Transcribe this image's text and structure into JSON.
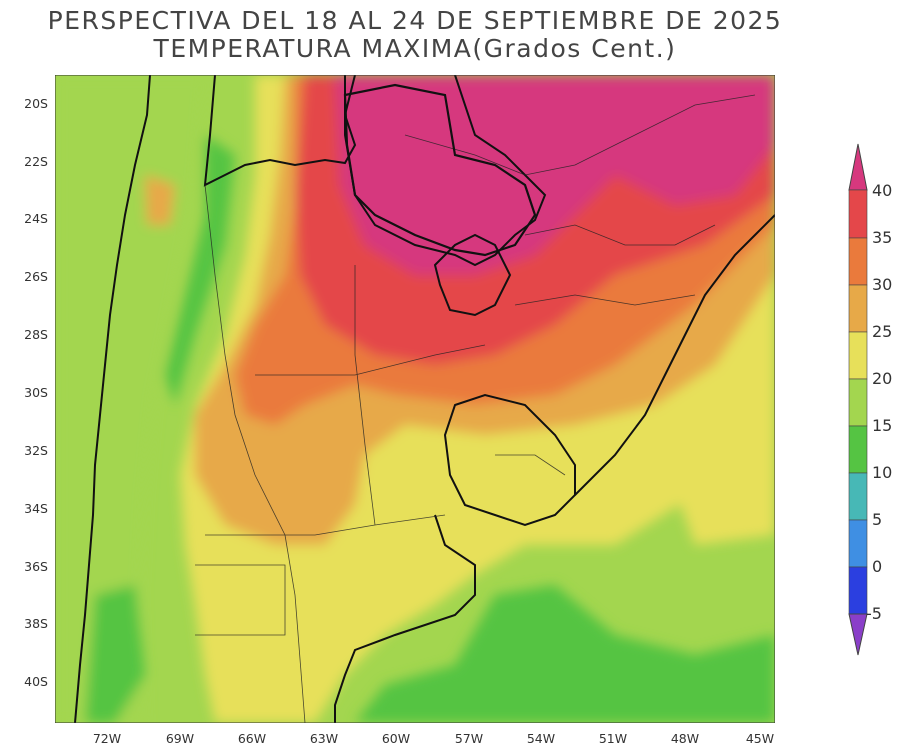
{
  "title_line1": "PERSPECTIVA DEL 18 AL 24 DE SEPTIEMBRE DE 2025",
  "title_line2": "TEMPERATURA MAXIMA(Grados Cent.)",
  "lat_labels": [
    "20S",
    "22S",
    "24S",
    "26S",
    "28S",
    "30S",
    "32S",
    "34S",
    "36S",
    "38S",
    "40S"
  ],
  "lon_labels": [
    "72W",
    "69W",
    "66W",
    "63W",
    "60W",
    "57W",
    "54W",
    "51W",
    "48W",
    "45W"
  ],
  "legend": {
    "labels": [
      "40",
      "35",
      "30",
      "25",
      "20",
      "15",
      "10",
      "5",
      "0",
      "-5"
    ],
    "colors": {
      "gt40": "#d6387e",
      "35_40": "#e4474a",
      "30_35": "#ea7a3c",
      "25_30": "#e7a948",
      "20_25": "#e7e05a",
      "15_20": "#a3d64f",
      "10_15": "#55c443",
      "5_10": "#47b8b6",
      "0_5": "#3f8fe3",
      "m5_0": "#2b3fe0",
      "lt_m5": "#8a3fc9"
    }
  }
}
